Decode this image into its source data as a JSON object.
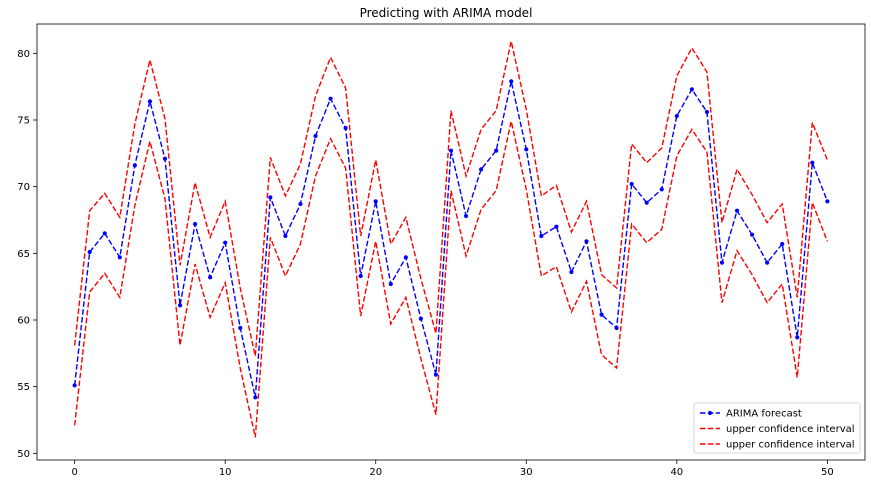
{
  "chart_data": {
    "type": "line",
    "title": "Predicting with ARIMA model",
    "xlabel": "",
    "ylabel": "",
    "xlim": [
      -2.5,
      52.5
    ],
    "ylim": [
      49.5,
      82.2
    ],
    "x_ticks": [
      0,
      10,
      20,
      30,
      40,
      50
    ],
    "y_ticks": [
      50,
      55,
      60,
      65,
      70,
      75,
      80
    ],
    "grid": false,
    "legend_position": "lower-right",
    "x": [
      0,
      1,
      2,
      3,
      4,
      5,
      6,
      7,
      8,
      9,
      10,
      11,
      12,
      13,
      14,
      15,
      16,
      17,
      18,
      19,
      20,
      21,
      22,
      23,
      24,
      25,
      26,
      27,
      28,
      29,
      30,
      31,
      32,
      33,
      34,
      35,
      36,
      37,
      38,
      39,
      40,
      41,
      42,
      43,
      44,
      45,
      46,
      47,
      48,
      49,
      50
    ],
    "series": [
      {
        "name": "ARIMA forecast",
        "color": "#0000ff",
        "linestyle": "dashed",
        "marker": "dot",
        "values": [
          55.1,
          65.1,
          66.5,
          64.7,
          71.6,
          76.4,
          72.1,
          61.1,
          67.2,
          63.2,
          65.8,
          59.4,
          54.2,
          69.2,
          66.3,
          68.7,
          73.8,
          76.6,
          74.4,
          63.3,
          68.9,
          62.7,
          64.7,
          60.1,
          55.9,
          72.7,
          67.8,
          71.3,
          72.7,
          77.9,
          72.8,
          66.3,
          67.0,
          63.6,
          65.9,
          60.4,
          59.4,
          70.2,
          68.8,
          69.8,
          75.3,
          77.3,
          75.6,
          64.3,
          68.2,
          66.4,
          64.3,
          65.7,
          58.7,
          71.8,
          68.9
        ]
      },
      {
        "name": "upper confidence interval",
        "color": "#ff0000",
        "linestyle": "dashed",
        "values": [
          58.1,
          68.2,
          69.5,
          67.7,
          74.7,
          79.5,
          75.1,
          64.1,
          70.3,
          66.2,
          68.9,
          62.4,
          57.3,
          72.2,
          69.3,
          71.7,
          76.8,
          79.7,
          77.4,
          66.3,
          72.0,
          65.7,
          67.7,
          63.1,
          59.0,
          75.7,
          70.8,
          74.3,
          75.7,
          80.9,
          75.8,
          69.3,
          70.1,
          66.6,
          68.9,
          63.4,
          62.4,
          73.2,
          71.8,
          72.9,
          78.3,
          80.4,
          78.6,
          67.3,
          71.3,
          69.4,
          67.3,
          68.7,
          61.7,
          74.8,
          72.0
        ]
      },
      {
        "name": "upper confidence interval",
        "color": "#ff0000",
        "linestyle": "dashed",
        "values": [
          52.1,
          62.1,
          63.5,
          61.7,
          68.6,
          73.4,
          69.1,
          58.1,
          64.2,
          60.2,
          62.8,
          56.4,
          51.2,
          66.2,
          63.3,
          65.7,
          70.8,
          73.6,
          71.4,
          60.3,
          65.9,
          59.7,
          61.7,
          57.1,
          52.9,
          69.7,
          64.8,
          68.3,
          69.7,
          74.9,
          69.8,
          63.3,
          64.0,
          60.6,
          62.9,
          57.4,
          56.4,
          67.2,
          65.8,
          66.8,
          72.3,
          74.3,
          72.6,
          61.3,
          65.2,
          63.4,
          61.3,
          62.7,
          55.7,
          68.8,
          65.9
        ]
      }
    ]
  }
}
